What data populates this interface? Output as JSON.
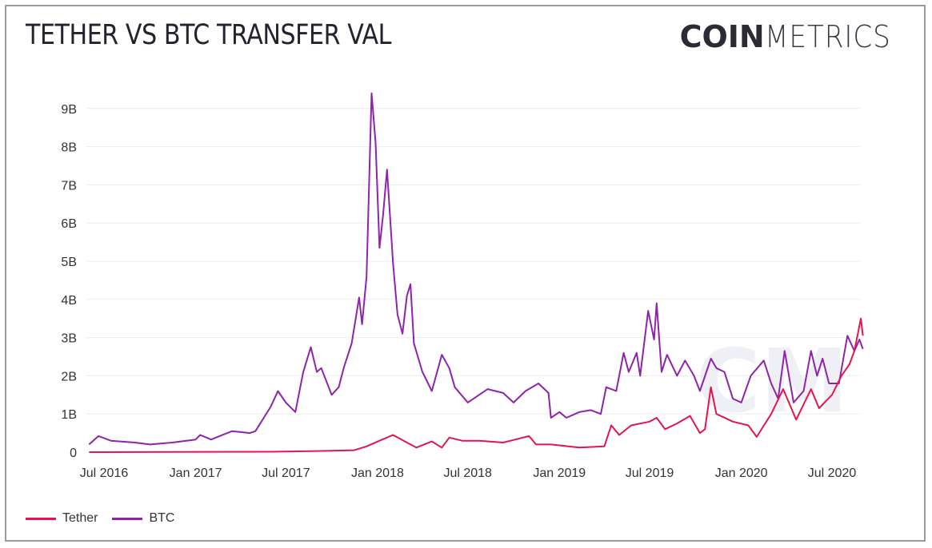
{
  "title": "TETHER VS BTC TRANSFER VAL",
  "logo": {
    "bold": "COIN",
    "light": "METRICS"
  },
  "chart_data": {
    "type": "line",
    "title": "TETHER VS BTC TRANSFER VAL",
    "xlabel": "",
    "ylabel": "",
    "ylim": [
      0,
      9.4
    ],
    "yticks": [
      {
        "v": 0,
        "label": "0"
      },
      {
        "v": 1,
        "label": "1B"
      },
      {
        "v": 2,
        "label": "2B"
      },
      {
        "v": 3,
        "label": "3B"
      },
      {
        "v": 4,
        "label": "4B"
      },
      {
        "v": 5,
        "label": "5B"
      },
      {
        "v": 6,
        "label": "6B"
      },
      {
        "v": 7,
        "label": "7B"
      },
      {
        "v": 8,
        "label": "8B"
      },
      {
        "v": 9,
        "label": "9B"
      }
    ],
    "xticks": [
      {
        "d": "2016-07-01",
        "label": "Jul 2016"
      },
      {
        "d": "2017-01-01",
        "label": "Jan 2017"
      },
      {
        "d": "2017-07-01",
        "label": "Jul 2017"
      },
      {
        "d": "2018-01-01",
        "label": "Jan 2018"
      },
      {
        "d": "2018-07-01",
        "label": "Jul 2018"
      },
      {
        "d": "2019-01-01",
        "label": "Jan 2019"
      },
      {
        "d": "2019-07-01",
        "label": "Jul 2019"
      },
      {
        "d": "2020-01-01",
        "label": "Jan 2020"
      },
      {
        "d": "2020-07-01",
        "label": "Jul 2020"
      }
    ],
    "units": "billions USD",
    "grid": true,
    "legend_position": "bottom-left",
    "series": [
      {
        "name": "Tether",
        "color": "#e0174f",
        "points": [
          [
            "2016-06-01",
            0
          ],
          [
            "2017-06-01",
            0.01
          ],
          [
            "2017-09-01",
            0.03
          ],
          [
            "2017-11-15",
            0.05
          ],
          [
            "2017-12-10",
            0.15
          ],
          [
            "2018-01-05",
            0.3
          ],
          [
            "2018-02-01",
            0.45
          ],
          [
            "2018-03-01",
            0.25
          ],
          [
            "2018-03-20",
            0.12
          ],
          [
            "2018-04-20",
            0.28
          ],
          [
            "2018-05-10",
            0.12
          ],
          [
            "2018-05-25",
            0.38
          ],
          [
            "2018-06-20",
            0.3
          ],
          [
            "2018-07-25",
            0.3
          ],
          [
            "2018-09-10",
            0.25
          ],
          [
            "2018-11-01",
            0.42
          ],
          [
            "2018-11-15",
            0.2
          ],
          [
            "2018-12-15",
            0.2
          ],
          [
            "2019-02-10",
            0.12
          ],
          [
            "2019-04-01",
            0.15
          ],
          [
            "2019-04-15",
            0.7
          ],
          [
            "2019-05-01",
            0.45
          ],
          [
            "2019-05-25",
            0.7
          ],
          [
            "2019-07-01",
            0.8
          ],
          [
            "2019-07-15",
            0.9
          ],
          [
            "2019-08-01",
            0.6
          ],
          [
            "2019-08-25",
            0.75
          ],
          [
            "2019-09-20",
            0.95
          ],
          [
            "2019-10-10",
            0.5
          ],
          [
            "2019-10-20",
            0.6
          ],
          [
            "2019-11-01",
            1.7
          ],
          [
            "2019-11-12",
            1.0
          ],
          [
            "2019-12-15",
            0.8
          ],
          [
            "2020-01-15",
            0.7
          ],
          [
            "2020-02-01",
            0.4
          ],
          [
            "2020-03-01",
            1.0
          ],
          [
            "2020-03-25",
            1.65
          ],
          [
            "2020-04-20",
            0.85
          ],
          [
            "2020-05-20",
            1.65
          ],
          [
            "2020-06-05",
            1.15
          ],
          [
            "2020-07-01",
            1.5
          ],
          [
            "2020-07-20",
            2.0
          ],
          [
            "2020-08-05",
            2.3
          ],
          [
            "2020-08-15",
            2.65
          ],
          [
            "2020-08-28",
            3.5
          ],
          [
            "2020-09-01",
            3.05
          ]
        ]
      },
      {
        "name": "BTC",
        "color": "#8e24aa",
        "points": [
          [
            "2016-06-01",
            0.2
          ],
          [
            "2016-06-20",
            0.42
          ],
          [
            "2016-07-15",
            0.3
          ],
          [
            "2016-09-01",
            0.25
          ],
          [
            "2016-10-01",
            0.2
          ],
          [
            "2016-11-15",
            0.25
          ],
          [
            "2017-01-01",
            0.33
          ],
          [
            "2017-01-10",
            0.45
          ],
          [
            "2017-02-01",
            0.33
          ],
          [
            "2017-03-15",
            0.55
          ],
          [
            "2017-04-20",
            0.5
          ],
          [
            "2017-05-01",
            0.55
          ],
          [
            "2017-06-01",
            1.2
          ],
          [
            "2017-06-15",
            1.6
          ],
          [
            "2017-07-01",
            1.3
          ],
          [
            "2017-07-20",
            1.05
          ],
          [
            "2017-08-05",
            2.1
          ],
          [
            "2017-08-20",
            2.75
          ],
          [
            "2017-09-01",
            2.1
          ],
          [
            "2017-09-10",
            2.2
          ],
          [
            "2017-10-01",
            1.5
          ],
          [
            "2017-10-15",
            1.7
          ],
          [
            "2017-10-25",
            2.2
          ],
          [
            "2017-11-10",
            2.85
          ],
          [
            "2017-11-25",
            4.05
          ],
          [
            "2017-12-01",
            3.35
          ],
          [
            "2017-12-10",
            4.6
          ],
          [
            "2017-12-20",
            9.4
          ],
          [
            "2017-12-28",
            8.1
          ],
          [
            "2018-01-05",
            5.35
          ],
          [
            "2018-01-12",
            6.2
          ],
          [
            "2018-01-20",
            7.4
          ],
          [
            "2018-02-01",
            4.95
          ],
          [
            "2018-02-10",
            3.6
          ],
          [
            "2018-02-20",
            3.1
          ],
          [
            "2018-03-01",
            4.1
          ],
          [
            "2018-03-08",
            4.4
          ],
          [
            "2018-03-15",
            2.85
          ],
          [
            "2018-04-01",
            2.1
          ],
          [
            "2018-04-20",
            1.6
          ],
          [
            "2018-05-10",
            2.55
          ],
          [
            "2018-05-25",
            2.2
          ],
          [
            "2018-06-05",
            1.7
          ],
          [
            "2018-07-01",
            1.3
          ],
          [
            "2018-08-10",
            1.65
          ],
          [
            "2018-09-10",
            1.55
          ],
          [
            "2018-10-01",
            1.3
          ],
          [
            "2018-10-25",
            1.6
          ],
          [
            "2018-11-20",
            1.8
          ],
          [
            "2018-12-10",
            1.55
          ],
          [
            "2018-12-15",
            0.9
          ],
          [
            "2019-01-01",
            1.05
          ],
          [
            "2019-01-15",
            0.9
          ],
          [
            "2019-02-10",
            1.05
          ],
          [
            "2019-03-05",
            1.1
          ],
          [
            "2019-03-25",
            1.0
          ],
          [
            "2019-04-05",
            1.7
          ],
          [
            "2019-04-25",
            1.6
          ],
          [
            "2019-05-10",
            2.6
          ],
          [
            "2019-05-20",
            2.1
          ],
          [
            "2019-06-05",
            2.6
          ],
          [
            "2019-06-12",
            2.0
          ],
          [
            "2019-06-28",
            3.7
          ],
          [
            "2019-07-10",
            2.95
          ],
          [
            "2019-07-15",
            3.9
          ],
          [
            "2019-07-25",
            2.1
          ],
          [
            "2019-08-05",
            2.55
          ],
          [
            "2019-08-25",
            2.0
          ],
          [
            "2019-09-10",
            2.4
          ],
          [
            "2019-09-28",
            2.0
          ],
          [
            "2019-10-10",
            1.6
          ],
          [
            "2019-11-01",
            2.45
          ],
          [
            "2019-11-12",
            2.2
          ],
          [
            "2019-11-28",
            2.1
          ],
          [
            "2019-12-15",
            1.4
          ],
          [
            "2020-01-01",
            1.3
          ],
          [
            "2020-01-20",
            2.0
          ],
          [
            "2020-02-15",
            2.4
          ],
          [
            "2020-03-01",
            1.8
          ],
          [
            "2020-03-15",
            1.4
          ],
          [
            "2020-03-28",
            2.65
          ],
          [
            "2020-04-15",
            1.3
          ],
          [
            "2020-05-05",
            1.6
          ],
          [
            "2020-05-20",
            2.65
          ],
          [
            "2020-06-01",
            2.0
          ],
          [
            "2020-06-12",
            2.45
          ],
          [
            "2020-06-25",
            1.8
          ],
          [
            "2020-07-15",
            1.8
          ],
          [
            "2020-08-01",
            3.05
          ],
          [
            "2020-08-15",
            2.65
          ],
          [
            "2020-08-25",
            2.95
          ],
          [
            "2020-09-01",
            2.7
          ]
        ]
      }
    ]
  },
  "legend": [
    {
      "label": "Tether",
      "color": "#e0174f"
    },
    {
      "label": "BTC",
      "color": "#8e24aa"
    }
  ]
}
